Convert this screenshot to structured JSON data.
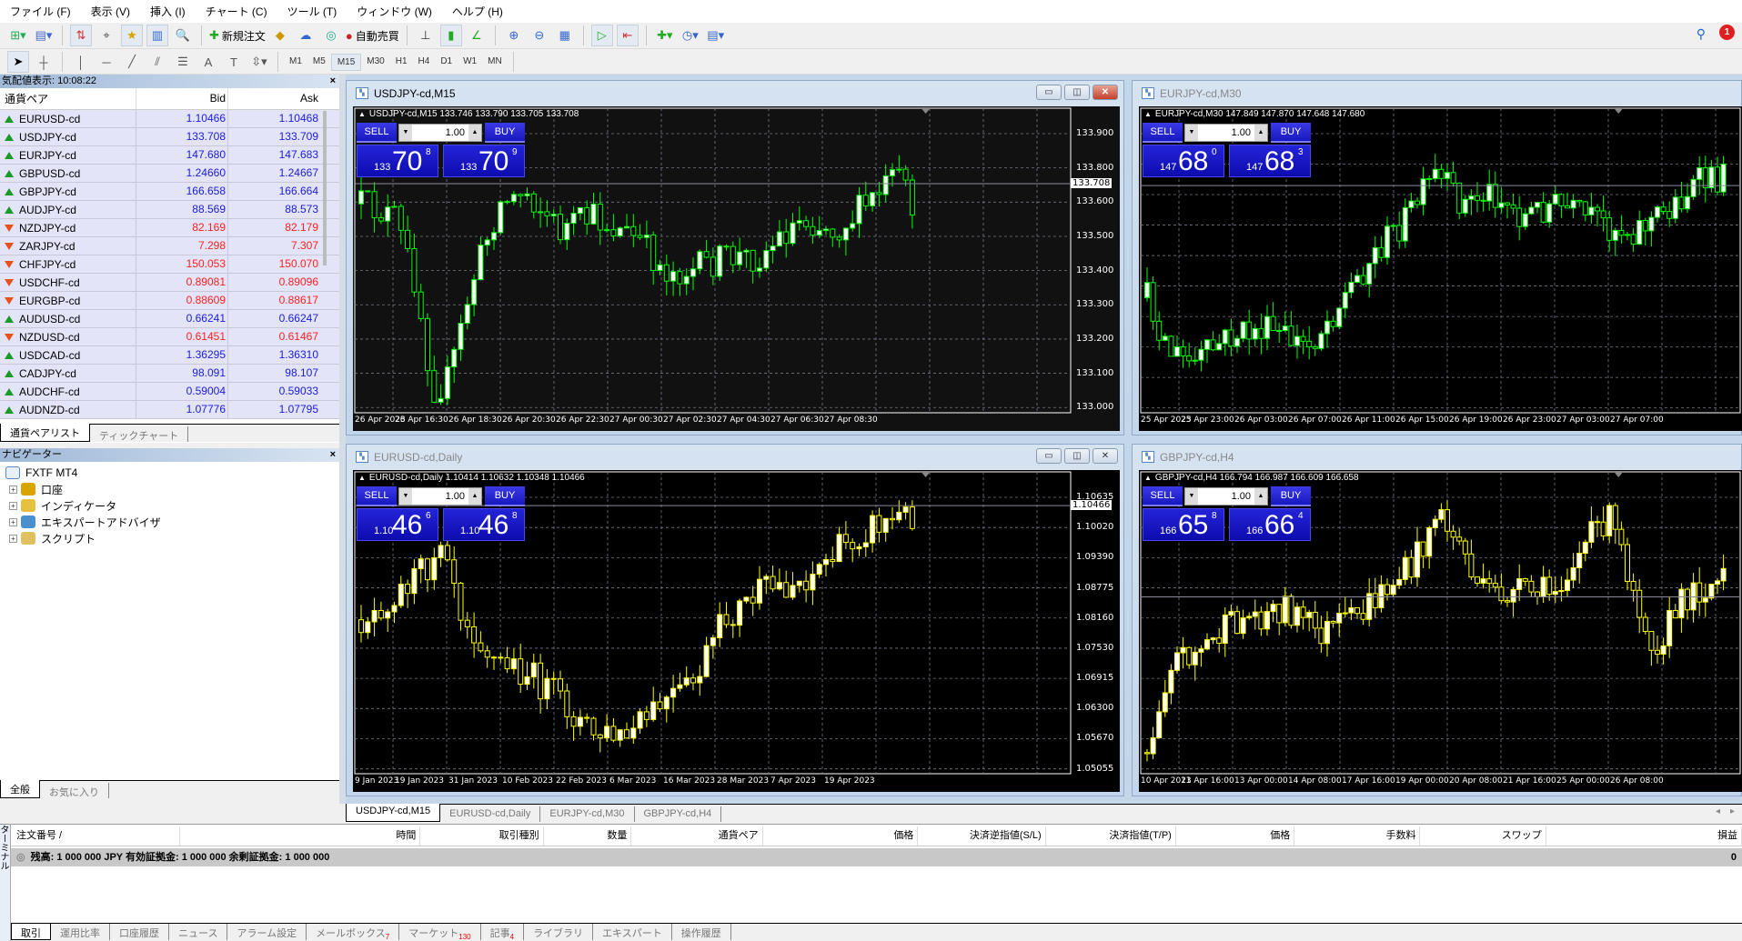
{
  "menu": [
    "ファイル (F)",
    "表示 (V)",
    "挿入 (I)",
    "チャート (C)",
    "ツール (T)",
    "ウィンドウ (W)",
    "ヘルプ (H)"
  ],
  "toolbar": {
    "new_order": "新規注文",
    "auto_trade": "自動売買",
    "timeframes": [
      "M1",
      "M5",
      "M15",
      "M30",
      "H1",
      "H4",
      "D1",
      "W1",
      "MN"
    ],
    "active_timeframe": "M15",
    "notification_count": "1"
  },
  "colors": {
    "up": "#1a1ae0",
    "down": "#ff2020",
    "bull_chart_lines": "#00ff00",
    "yellow_chart_lines": "#ffff00"
  },
  "market_watch": {
    "title": "気配値表示: 10:08:22",
    "columns": {
      "pair": "通貨ペア",
      "bid": "Bid",
      "ask": "Ask"
    },
    "rows": [
      {
        "symbol": "EURUSD-cd",
        "bid": "1.10466",
        "ask": "1.10468",
        "direction": "up"
      },
      {
        "symbol": "USDJPY-cd",
        "bid": "133.708",
        "ask": "133.709",
        "direction": "up"
      },
      {
        "symbol": "EURJPY-cd",
        "bid": "147.680",
        "ask": "147.683",
        "direction": "up"
      },
      {
        "symbol": "GBPUSD-cd",
        "bid": "1.24660",
        "ask": "1.24667",
        "direction": "up"
      },
      {
        "symbol": "GBPJPY-cd",
        "bid": "166.658",
        "ask": "166.664",
        "direction": "up"
      },
      {
        "symbol": "AUDJPY-cd",
        "bid": "88.569",
        "ask": "88.573",
        "direction": "up"
      },
      {
        "symbol": "NZDJPY-cd",
        "bid": "82.169",
        "ask": "82.179",
        "direction": "down"
      },
      {
        "symbol": "ZARJPY-cd",
        "bid": "7.298",
        "ask": "7.307",
        "direction": "down"
      },
      {
        "symbol": "CHFJPY-cd",
        "bid": "150.053",
        "ask": "150.070",
        "direction": "down"
      },
      {
        "symbol": "USDCHF-cd",
        "bid": "0.89081",
        "ask": "0.89096",
        "direction": "down"
      },
      {
        "symbol": "EURGBP-cd",
        "bid": "0.88609",
        "ask": "0.88617",
        "direction": "down"
      },
      {
        "symbol": "AUDUSD-cd",
        "bid": "0.66241",
        "ask": "0.66247",
        "direction": "up"
      },
      {
        "symbol": "NZDUSD-cd",
        "bid": "0.61451",
        "ask": "0.61467",
        "direction": "down"
      },
      {
        "symbol": "USDCAD-cd",
        "bid": "1.36295",
        "ask": "1.36310",
        "direction": "up"
      },
      {
        "symbol": "CADJPY-cd",
        "bid": "98.091",
        "ask": "98.107",
        "direction": "up"
      },
      {
        "symbol": "AUDCHF-cd",
        "bid": "0.59004",
        "ask": "0.59033",
        "direction": "up"
      },
      {
        "symbol": "AUDNZD-cd",
        "bid": "1.07776",
        "ask": "1.07795",
        "direction": "up"
      }
    ],
    "tabs": [
      "通貨ペアリスト",
      "ティックチャート"
    ]
  },
  "navigator": {
    "title": "ナビゲーター",
    "root": "FXTF MT4",
    "items": [
      "口座",
      "インディケータ",
      "エキスパートアドバイザ",
      "スクリプト"
    ],
    "tabs": [
      "全般",
      "お気に入り"
    ]
  },
  "charts": [
    {
      "title": "USDJPY-cd,M15",
      "header": "USDJPY-cd,M15  133.746 133.790 133.705 133.708",
      "active": true,
      "candle_color": "#00ff00",
      "lot": "1.00",
      "sell_label": "SELL",
      "buy_label": "BUY",
      "sell": {
        "prefix": "133",
        "big": "70",
        "sup": "8"
      },
      "buy": {
        "prefix": "133",
        "big": "70",
        "sup": "9"
      },
      "price_ticks": [
        "133.900",
        "133.800",
        "133.600",
        "133.500",
        "133.400",
        "133.300",
        "133.200",
        "133.100",
        "133.000"
      ],
      "current_price": "133.708",
      "time_labels": [
        "26 Apr 2023",
        "26 Apr 16:30",
        "26 Apr 18:30",
        "26 Apr 20:30",
        "26 Apr 22:30",
        "27 Apr 00:30",
        "27 Apr 02:30",
        "27 Apr 04:30",
        "27 Apr 06:30",
        "27 Apr 08:30"
      ]
    },
    {
      "title": "EURJPY-cd,M30",
      "header": "EURJPY-cd,M30  147.849 147.870 147.648 147.680",
      "active": false,
      "candle_color": "#00ff00",
      "lot": "1.00",
      "sell_label": "SELL",
      "buy_label": "BUY",
      "sell": {
        "prefix": "147",
        "big": "68",
        "sup": "0"
      },
      "buy": {
        "prefix": "147",
        "big": "68",
        "sup": "3"
      },
      "price_ticks": [],
      "current_price": "",
      "time_labels": [
        "25 Apr 2023",
        "25 Apr 23:00",
        "26 Apr 03:00",
        "26 Apr 07:00",
        "26 Apr 11:00",
        "26 Apr 15:00",
        "26 Apr 19:00",
        "26 Apr 23:00",
        "27 Apr 03:00",
        "27 Apr 07:00"
      ]
    },
    {
      "title": "EURUSD-cd,Daily",
      "header": "EURUSD-cd,Daily  1.10414 1.10632 1.10348 1.10466",
      "active": false,
      "candle_color": "#ffff00",
      "lot": "1.00",
      "sell_label": "SELL",
      "buy_label": "BUY",
      "sell": {
        "prefix": "1.10",
        "big": "46",
        "sup": "6"
      },
      "buy": {
        "prefix": "1.10",
        "big": "46",
        "sup": "8"
      },
      "price_ticks": [
        "1.10635",
        "1.10020",
        "1.09390",
        "1.08775",
        "1.08160",
        "1.07530",
        "1.06915",
        "1.06300",
        "1.05670",
        "1.05055"
      ],
      "current_price": "1.10466",
      "time_labels": [
        "9 Jan 2023",
        "19 Jan 2023",
        "31 Jan 2023",
        "10 Feb 2023",
        "22 Feb 2023",
        "6 Mar 2023",
        "16 Mar 2023",
        "28 Mar 2023",
        "7 Apr 2023",
        "19 Apr 2023"
      ]
    },
    {
      "title": "GBPJPY-cd,H4",
      "header": "GBPJPY-cd,H4  166.794 166.987 166.609 166.658",
      "active": false,
      "candle_color": "#ffff00",
      "lot": "1.00",
      "sell_label": "SELL",
      "buy_label": "BUY",
      "sell": {
        "prefix": "166",
        "big": "65",
        "sup": "8"
      },
      "buy": {
        "prefix": "166",
        "big": "66",
        "sup": "4"
      },
      "price_ticks": [],
      "current_price": "",
      "time_labels": [
        "10 Apr 2023",
        "11 Apr 16:00",
        "13 Apr 00:00",
        "14 Apr 08:00",
        "17 Apr 16:00",
        "19 Apr 00:00",
        "20 Apr 08:00",
        "21 Apr 16:00",
        "25 Apr 00:00",
        "26 Apr 08:00"
      ]
    }
  ],
  "chart_tabs": [
    "USDJPY-cd,M15",
    "EURUSD-cd,Daily",
    "EURJPY-cd,M30",
    "GBPJPY-cd,H4"
  ],
  "terminal": {
    "side_label": "ターミナル",
    "columns": [
      "注文番号 /",
      "時間",
      "取引種別",
      "数量",
      "通貨ペア",
      "価格",
      "決済逆指値(S/L)",
      "決済指値(T/P)",
      "価格",
      "手数料",
      "スワップ",
      "損益"
    ],
    "balance_text": "残高: 1 000 000 JPY  有効証拠金: 1 000 000  余剰証拠金: 1 000 000",
    "profit": "0",
    "tabs": [
      {
        "label": "取引",
        "badge": ""
      },
      {
        "label": "運用比率",
        "badge": ""
      },
      {
        "label": "口座履歴",
        "badge": ""
      },
      {
        "label": "ニュース",
        "badge": ""
      },
      {
        "label": "アラーム設定",
        "badge": ""
      },
      {
        "label": "メールボックス",
        "badge": "7"
      },
      {
        "label": "マーケット",
        "badge": "130"
      },
      {
        "label": "記事",
        "badge": "4"
      },
      {
        "label": "ライブラリ",
        "badge": ""
      },
      {
        "label": "エキスパート",
        "badge": ""
      },
      {
        "label": "操作履歴",
        "badge": ""
      }
    ]
  }
}
